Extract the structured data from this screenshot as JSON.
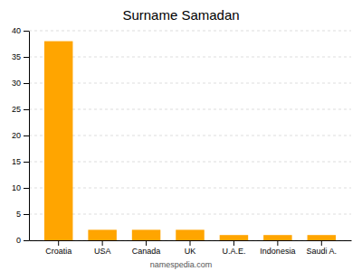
{
  "chart_data": {
    "type": "bar",
    "title": "Surname Samadan",
    "categories": [
      "Croatia",
      "USA",
      "Canada",
      "UK",
      "U.A.E.",
      "Indonesia",
      "Saudi A."
    ],
    "values": [
      38,
      2,
      2,
      2,
      1,
      1,
      1
    ],
    "color": "#FFA500",
    "ylim": [
      0,
      40
    ],
    "yticks": [
      0,
      5,
      10,
      15,
      20,
      25,
      30,
      35,
      40
    ],
    "grid": true,
    "annotations": [
      "namespedia.com"
    ]
  }
}
